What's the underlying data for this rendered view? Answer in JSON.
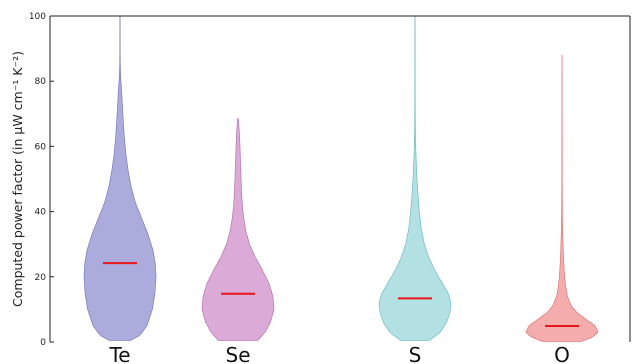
{
  "chart_data": {
    "type": "violin",
    "title": "",
    "xlabel": "",
    "ylabel": "Computed power factor (in μW cm⁻¹ K⁻²)",
    "ylim": [
      0,
      100
    ],
    "yticks": [
      0,
      20,
      40,
      60,
      80,
      100
    ],
    "categories": [
      "Te",
      "Se",
      "S",
      "O"
    ],
    "grid": false,
    "median_color": "#e8161b",
    "series": [
      {
        "category": "Te",
        "color": "#8f8fd0",
        "edge": "#7b7bbd",
        "median": 24.2,
        "min": 0.5,
        "max": 100,
        "profile": [
          [
            0.5,
            0.3
          ],
          [
            2,
            0.55
          ],
          [
            5,
            0.75
          ],
          [
            10,
            0.9
          ],
          [
            15,
            0.97
          ],
          [
            20,
            1.0
          ],
          [
            24,
            0.98
          ],
          [
            28,
            0.92
          ],
          [
            33,
            0.78
          ],
          [
            38,
            0.6
          ],
          [
            43,
            0.42
          ],
          [
            48,
            0.3
          ],
          [
            53,
            0.22
          ],
          [
            58,
            0.16
          ],
          [
            63,
            0.12
          ],
          [
            68,
            0.09
          ],
          [
            73,
            0.065
          ],
          [
            78,
            0.04
          ],
          [
            81,
            0.02
          ],
          [
            85,
            0.007
          ],
          [
            90,
            0.004
          ],
          [
            100,
            0.003
          ]
        ]
      },
      {
        "category": "Se",
        "color": "#cf8ec9",
        "edge": "#b774b1",
        "median": 14.8,
        "min": 0.5,
        "max": 68.5,
        "profile": [
          [
            0.5,
            0.55
          ],
          [
            3,
            0.75
          ],
          [
            6,
            0.9
          ],
          [
            10,
            1.0
          ],
          [
            14,
            0.97
          ],
          [
            18,
            0.86
          ],
          [
            22,
            0.68
          ],
          [
            26,
            0.48
          ],
          [
            30,
            0.32
          ],
          [
            34,
            0.22
          ],
          [
            38,
            0.16
          ],
          [
            42,
            0.12
          ],
          [
            46,
            0.1
          ],
          [
            50,
            0.085
          ],
          [
            55,
            0.07
          ],
          [
            60,
            0.055
          ],
          [
            64,
            0.04
          ],
          [
            67,
            0.02
          ],
          [
            68.5,
            0.01
          ]
        ]
      },
      {
        "category": "S",
        "color": "#99d6d9",
        "edge": "#6fbcc0",
        "median": 13.4,
        "min": 0.5,
        "max": 100,
        "profile": [
          [
            0.5,
            0.4
          ],
          [
            3,
            0.7
          ],
          [
            6,
            0.88
          ],
          [
            9,
            0.97
          ],
          [
            12,
            1.0
          ],
          [
            15,
            0.92
          ],
          [
            18,
            0.76
          ],
          [
            22,
            0.55
          ],
          [
            26,
            0.38
          ],
          [
            30,
            0.26
          ],
          [
            35,
            0.17
          ],
          [
            40,
            0.12
          ],
          [
            45,
            0.085
          ],
          [
            50,
            0.055
          ],
          [
            55,
            0.035
          ],
          [
            60,
            0.02
          ],
          [
            65,
            0.01
          ],
          [
            75,
            0.005
          ],
          [
            100,
            0.003
          ]
        ]
      },
      {
        "category": "O",
        "color": "#f29090",
        "edge": "#de7474",
        "median": 4.9,
        "min": 0.2,
        "max": 88,
        "profile": [
          [
            0.2,
            0.55
          ],
          [
            1.5,
            0.85
          ],
          [
            3,
            1.0
          ],
          [
            5,
            0.92
          ],
          [
            7,
            0.66
          ],
          [
            9,
            0.42
          ],
          [
            11,
            0.26
          ],
          [
            14,
            0.15
          ],
          [
            17,
            0.1
          ],
          [
            20,
            0.072
          ],
          [
            25,
            0.045
          ],
          [
            30,
            0.028
          ],
          [
            35,
            0.016
          ],
          [
            40,
            0.009
          ],
          [
            50,
            0.005
          ],
          [
            70,
            0.003
          ],
          [
            88,
            0.002
          ]
        ]
      }
    ]
  }
}
